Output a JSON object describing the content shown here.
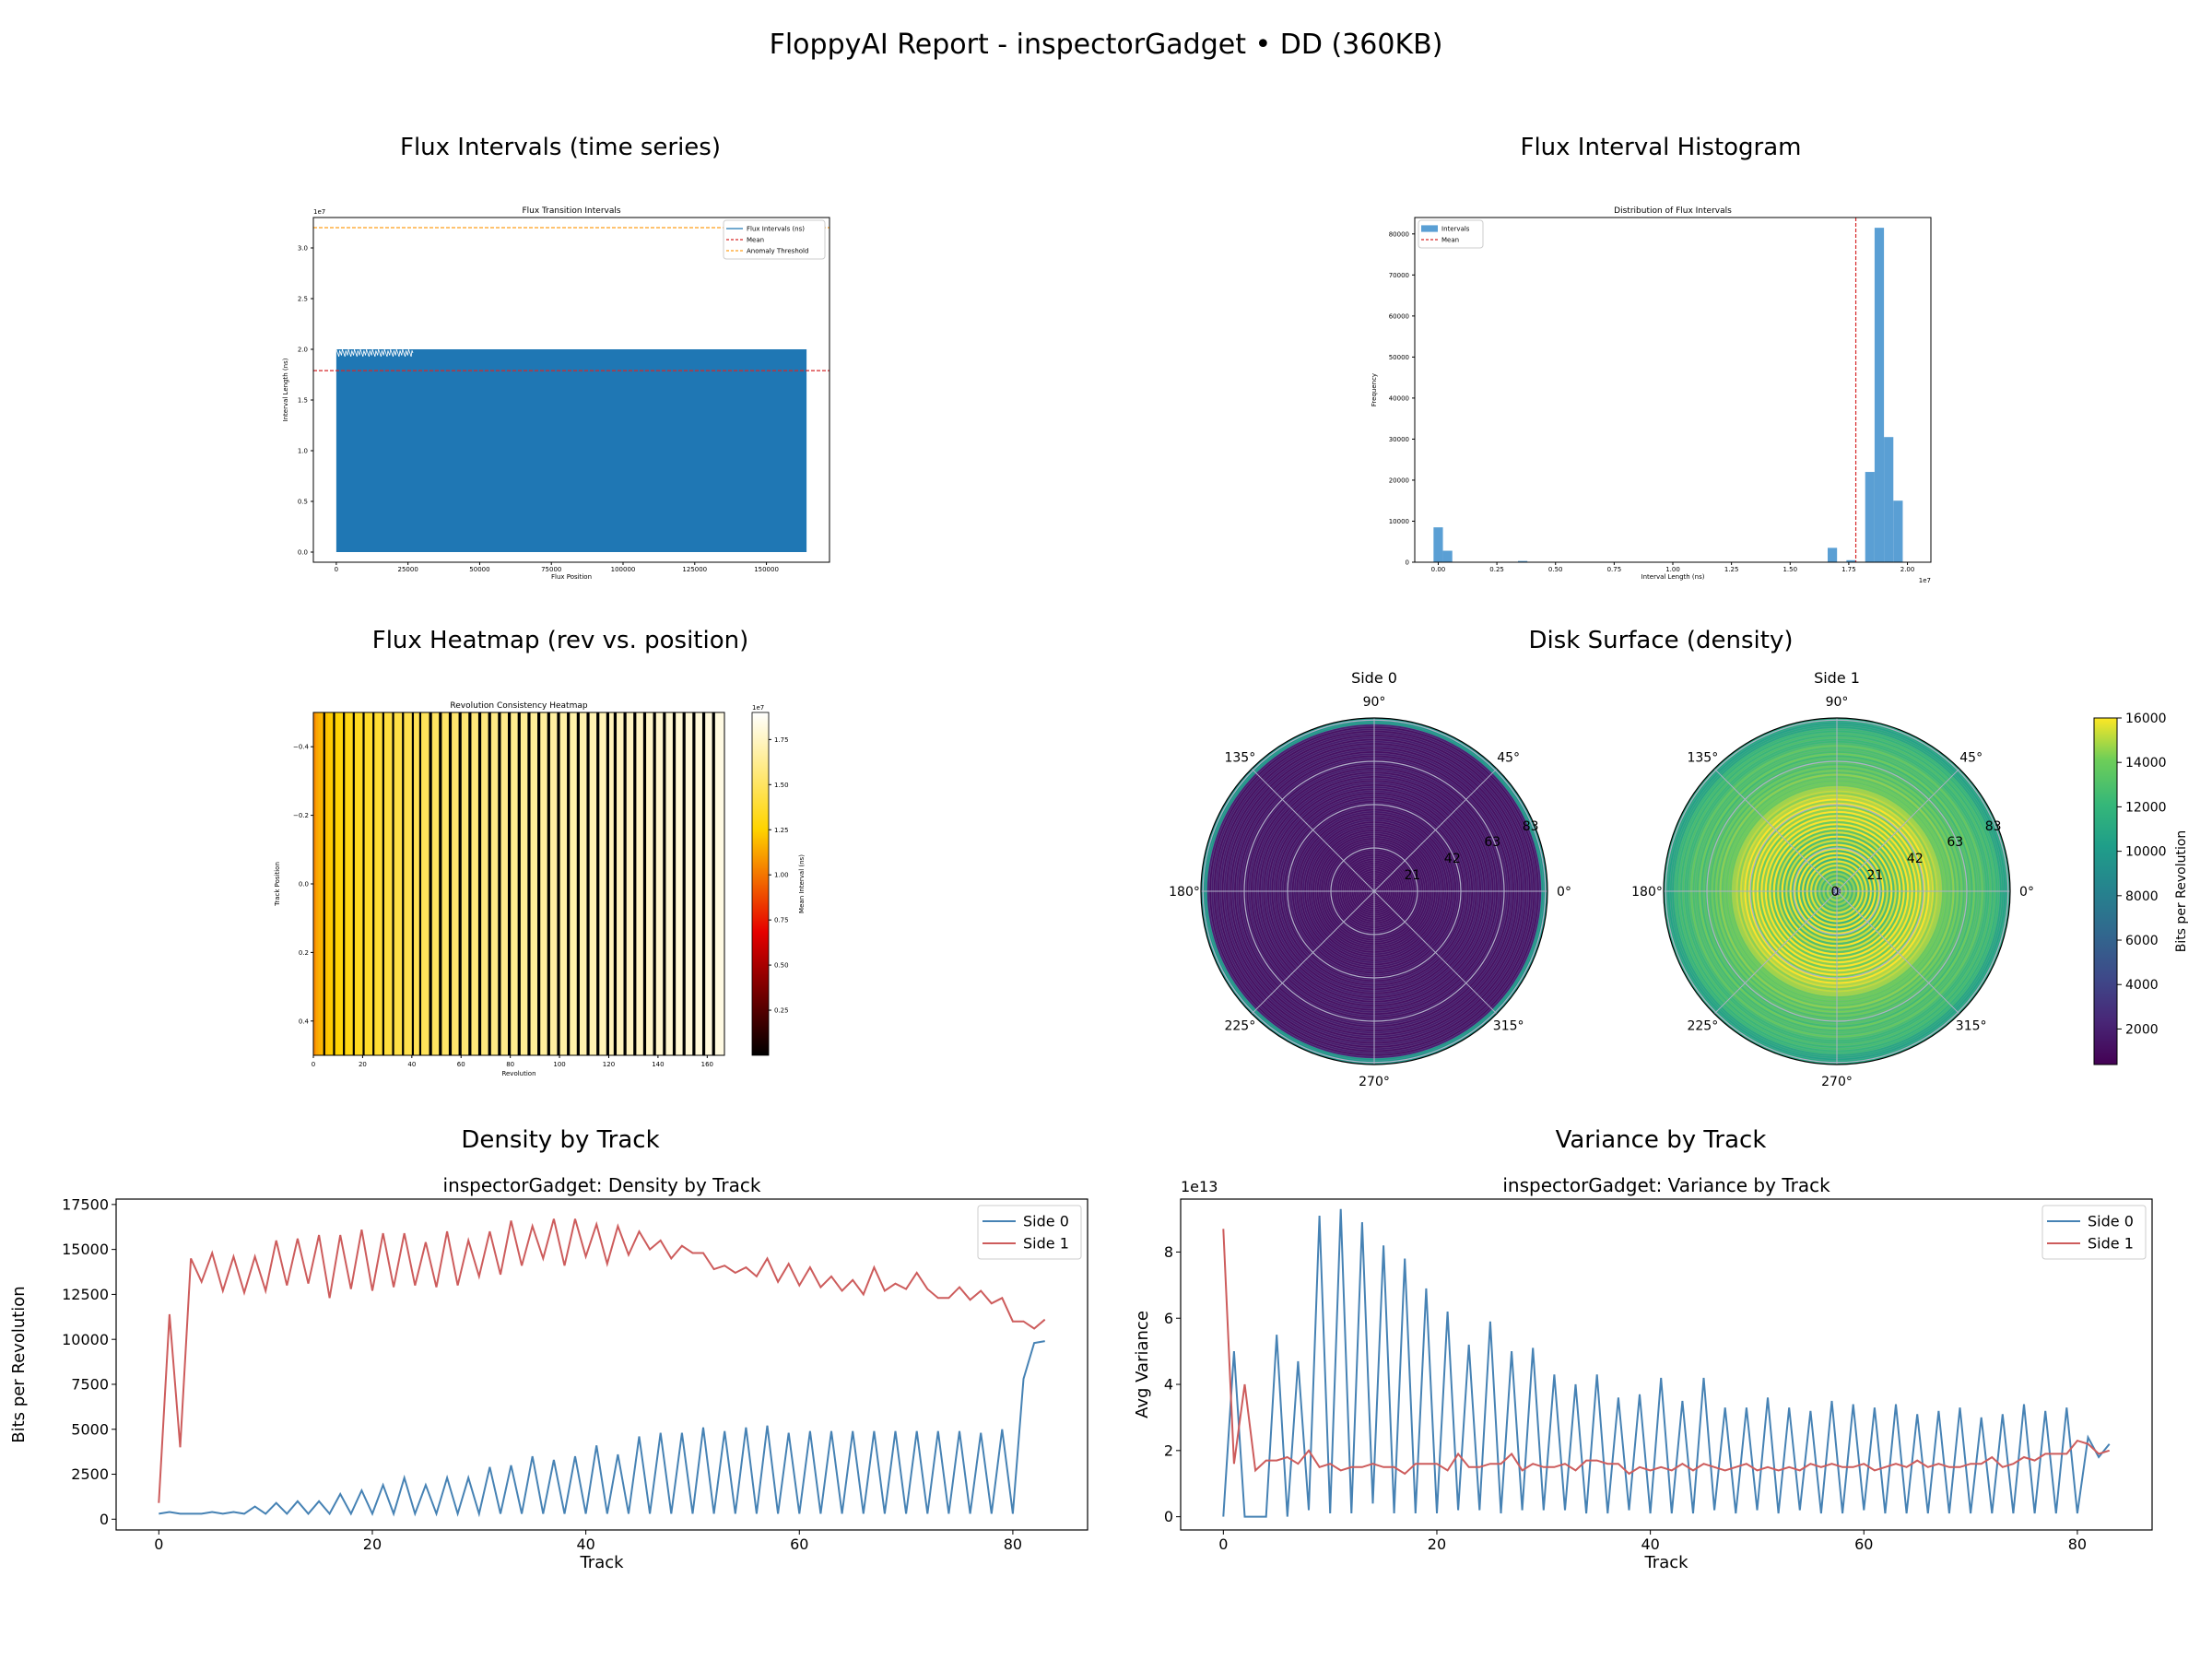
{
  "report": {
    "title": "FloppyAI Report - inspectorGadget  •  DD (360KB)"
  },
  "colors": {
    "side0": "#4682b4",
    "side1": "#cd5c5c",
    "flux_blue": "#1f77b4",
    "mean_red": "#d62728",
    "threshold_orange": "#ff9f1a",
    "hist_blue": "#5a9fd4"
  },
  "panels": {
    "flux_series": {
      "title": "Flux Intervals (time series)"
    },
    "flux_hist": {
      "title": "Flux Interval Histogram"
    },
    "heatmap": {
      "title": "Flux Heatmap (rev vs. position)"
    },
    "surface": {
      "title": "Disk Surface (density)"
    },
    "density": {
      "title": "Density by Track"
    },
    "variance": {
      "title": "Variance by Track"
    }
  },
  "chart_data": [
    {
      "id": "flux_series",
      "type": "area",
      "title": "Flux Transition Intervals",
      "xlabel": "Flux Position",
      "ylabel": "Interval Length (ns)",
      "y_offset_label": "1e7",
      "xlim": [
        -8000,
        172000
      ],
      "ylim": [
        -0.1,
        3.3
      ],
      "xticks": [
        0,
        25000,
        50000,
        75000,
        100000,
        125000,
        150000
      ],
      "xtick_labels": [
        "0",
        "25000",
        "50000",
        "75000",
        "100000",
        "125000",
        "150000"
      ],
      "yticks": [
        0.0,
        0.5,
        1.0,
        1.5,
        2.0,
        2.5,
        3.0
      ],
      "ytick_labels": [
        "0.0",
        "0.5",
        "1.0",
        "1.5",
        "2.0",
        "2.5",
        "3.0"
      ],
      "fill_x_range": [
        0,
        164000
      ],
      "fill_y_range": [
        0.0,
        2.0
      ],
      "mean": 1.79,
      "anomaly_threshold": 3.2,
      "legend": [
        "Flux Intervals (ns)",
        "Mean",
        "Anomaly Threshold"
      ],
      "legend_position": "upper right"
    },
    {
      "id": "flux_hist",
      "type": "bar",
      "title": "Distribution of Flux Intervals",
      "xlabel": "Interval Length (ns)",
      "ylabel": "Frequency",
      "x_offset_label": "1e7",
      "xlim": [
        -0.1,
        2.1
      ],
      "ylim": [
        0,
        84000
      ],
      "xticks": [
        0.0,
        0.25,
        0.5,
        0.75,
        1.0,
        1.25,
        1.5,
        1.75,
        2.0
      ],
      "xtick_labels": [
        "0.00",
        "0.25",
        "0.50",
        "0.75",
        "1.00",
        "1.25",
        "1.50",
        "1.75",
        "2.00"
      ],
      "yticks": [
        0,
        10000,
        20000,
        30000,
        40000,
        50000,
        60000,
        70000,
        80000
      ],
      "ytick_labels": [
        "0",
        "10000",
        "20000",
        "30000",
        "40000",
        "50000",
        "60000",
        "70000",
        "80000"
      ],
      "bin_width": 0.04,
      "bins": [
        {
          "x": -0.02,
          "count": 8500
        },
        {
          "x": 0.02,
          "count": 2800
        },
        {
          "x": 0.34,
          "count": 300
        },
        {
          "x": 1.66,
          "count": 3500
        },
        {
          "x": 1.74,
          "count": 500
        },
        {
          "x": 1.82,
          "count": 22000
        },
        {
          "x": 1.86,
          "count": 81500
        },
        {
          "x": 1.9,
          "count": 30500
        },
        {
          "x": 1.94,
          "count": 15000
        }
      ],
      "mean": 1.78,
      "legend": [
        "Intervals",
        "Mean"
      ],
      "legend_position": "upper left"
    },
    {
      "id": "heatmap",
      "type": "heatmap",
      "title": "Revolution Consistency Heatmap",
      "xlabel": "Revolution",
      "ylabel": "Track Position",
      "colorbar_label": "Mean Interval (ns)",
      "colorbar_offset_label": "1e7",
      "colormap": "hot",
      "xlim": [
        0,
        167
      ],
      "ylim": [
        -0.5,
        0.5
      ],
      "xticks": [
        0,
        20,
        40,
        60,
        80,
        100,
        120,
        140,
        160
      ],
      "xtick_labels": [
        "0",
        "20",
        "40",
        "60",
        "80",
        "100",
        "120",
        "140",
        "160"
      ],
      "yticks": [
        -0.4,
        -0.2,
        0.0,
        0.2,
        0.4
      ],
      "ytick_labels": [
        "−0.4",
        "−0.2",
        "0.0",
        "0.2",
        "0.4"
      ],
      "color_range": [
        0.0,
        1.9
      ],
      "colorbar_ticks": [
        0.25,
        0.5,
        0.75,
        1.0,
        1.25,
        1.5,
        1.75
      ],
      "colorbar_tick_labels": [
        "0.25",
        "0.50",
        "0.75",
        "1.00",
        "1.25",
        "1.50",
        "1.75"
      ]
    },
    {
      "id": "surface_side0",
      "type": "heatmap",
      "title": "Side 0",
      "projection": "polar",
      "angle_labels": [
        "0°",
        "45°",
        "90°",
        "135°",
        "180°",
        "225°",
        "270°",
        "315°"
      ],
      "radial_ticks": [
        21,
        42,
        63,
        83
      ],
      "radial_tick_labels": [
        "21",
        "42",
        "63",
        "83"
      ],
      "radial_max": 84,
      "colormap": "viridis",
      "color_range": [
        400,
        16000
      ],
      "outer_band_value": 9800,
      "inner_value": 1200
    },
    {
      "id": "surface_side1",
      "type": "heatmap",
      "title": "Side 1",
      "projection": "polar",
      "angle_labels": [
        "0°",
        "45°",
        "90°",
        "135°",
        "180°",
        "225°",
        "270°",
        "315°"
      ],
      "radial_ticks": [
        0,
        21,
        42,
        63,
        83
      ],
      "radial_tick_labels": [
        "0",
        "21",
        "42",
        "63",
        "83"
      ],
      "radial_max": 84,
      "colormap": "viridis",
      "color_range": [
        400,
        16000
      ],
      "colorbar_label": "Bits per Revolution",
      "colorbar_ticks": [
        2000,
        4000,
        6000,
        8000,
        10000,
        12000,
        14000,
        16000
      ],
      "colorbar_tick_labels": [
        "2000",
        "4000",
        "6000",
        "8000",
        "10000",
        "12000",
        "14000",
        "16000"
      ]
    },
    {
      "id": "density",
      "type": "line",
      "title": "inspectorGadget: Density by Track",
      "xlabel": "Track",
      "ylabel": "Bits per Revolution",
      "xlim": [
        -4,
        87
      ],
      "ylim": [
        -600,
        17800
      ],
      "xticks": [
        0,
        20,
        40,
        60,
        80
      ],
      "xtick_labels": [
        "0",
        "20",
        "40",
        "60",
        "80"
      ],
      "yticks": [
        0,
        2500,
        5000,
        7500,
        10000,
        12500,
        15000,
        17500
      ],
      "ytick_labels": [
        "0",
        "2500",
        "5000",
        "7500",
        "10000",
        "12500",
        "15000",
        "17500"
      ],
      "legend_position": "upper right",
      "series": [
        {
          "name": "Side 0",
          "color": "#4682b4",
          "x": [
            0,
            1,
            2,
            3,
            4,
            5,
            6,
            7,
            8,
            9,
            10,
            11,
            12,
            13,
            14,
            15,
            16,
            17,
            18,
            19,
            20,
            21,
            22,
            23,
            24,
            25,
            26,
            27,
            28,
            29,
            30,
            31,
            32,
            33,
            34,
            35,
            36,
            37,
            38,
            39,
            40,
            41,
            42,
            43,
            44,
            45,
            46,
            47,
            48,
            49,
            50,
            51,
            52,
            53,
            54,
            55,
            56,
            57,
            58,
            59,
            60,
            61,
            62,
            63,
            64,
            65,
            66,
            67,
            68,
            69,
            70,
            71,
            72,
            73,
            74,
            75,
            76,
            77,
            78,
            79,
            80,
            81,
            82,
            83
          ],
          "values": [
            300,
            400,
            300,
            300,
            300,
            400,
            300,
            400,
            300,
            700,
            300,
            900,
            300,
            1000,
            300,
            1000,
            300,
            1400,
            300,
            1600,
            300,
            1900,
            300,
            2300,
            300,
            1900,
            300,
            2300,
            300,
            2300,
            300,
            2900,
            300,
            3000,
            300,
            3500,
            300,
            3300,
            300,
            3500,
            300,
            4100,
            300,
            3600,
            300,
            4600,
            300,
            4800,
            300,
            4800,
            300,
            5100,
            300,
            4900,
            300,
            5100,
            300,
            5200,
            300,
            4800,
            300,
            4900,
            300,
            4900,
            300,
            4900,
            300,
            4900,
            300,
            4900,
            300,
            4900,
            300,
            4900,
            300,
            4900,
            300,
            4800,
            300,
            5000,
            300,
            7800,
            9800,
            9900
          ]
        },
        {
          "name": "Side 1",
          "color": "#cd5c5c",
          "x": [
            0,
            1,
            2,
            3,
            4,
            5,
            6,
            7,
            8,
            9,
            10,
            11,
            12,
            13,
            14,
            15,
            16,
            17,
            18,
            19,
            20,
            21,
            22,
            23,
            24,
            25,
            26,
            27,
            28,
            29,
            30,
            31,
            32,
            33,
            34,
            35,
            36,
            37,
            38,
            39,
            40,
            41,
            42,
            43,
            44,
            45,
            46,
            47,
            48,
            49,
            50,
            51,
            52,
            53,
            54,
            55,
            56,
            57,
            58,
            59,
            60,
            61,
            62,
            63,
            64,
            65,
            66,
            67,
            68,
            69,
            70,
            71,
            72,
            73,
            74,
            75,
            76,
            77,
            78,
            79,
            80,
            81,
            82,
            83
          ],
          "values": [
            900,
            11400,
            4000,
            14500,
            13200,
            14800,
            12700,
            14600,
            12600,
            14600,
            12700,
            15500,
            13000,
            15600,
            13100,
            15800,
            12300,
            15800,
            12800,
            16100,
            12700,
            15900,
            12900,
            15900,
            13000,
            15400,
            12900,
            16000,
            13000,
            15500,
            13500,
            16000,
            13600,
            16600,
            14100,
            16300,
            14500,
            16700,
            14100,
            16700,
            14600,
            16400,
            14200,
            16300,
            14700,
            16000,
            15000,
            15500,
            14500,
            15200,
            14800,
            14800,
            13900,
            14100,
            13700,
            14000,
            13500,
            14500,
            13200,
            14200,
            13000,
            14000,
            12900,
            13500,
            12700,
            13300,
            12500,
            14000,
            12700,
            13100,
            12800,
            13700,
            12800,
            12300,
            12300,
            12900,
            12200,
            12700,
            12000,
            12300,
            11000,
            11000,
            10600,
            11100
          ]
        }
      ]
    },
    {
      "id": "variance",
      "type": "line",
      "title": "inspectorGadget: Variance by Track",
      "xlabel": "Track",
      "ylabel": "Avg Variance",
      "y_offset_label": "1e13",
      "xlim": [
        -4,
        87
      ],
      "ylim": [
        -0.4,
        9.6
      ],
      "xticks": [
        0,
        20,
        40,
        60,
        80
      ],
      "xtick_labels": [
        "0",
        "20",
        "40",
        "60",
        "80"
      ],
      "yticks": [
        0,
        2,
        4,
        6,
        8
      ],
      "ytick_labels": [
        "0",
        "2",
        "4",
        "6",
        "8"
      ],
      "legend_position": "upper right",
      "series": [
        {
          "name": "Side 0",
          "color": "#4682b4",
          "x": [
            0,
            1,
            2,
            3,
            4,
            5,
            6,
            7,
            8,
            9,
            10,
            11,
            12,
            13,
            14,
            15,
            16,
            17,
            18,
            19,
            20,
            21,
            22,
            23,
            24,
            25,
            26,
            27,
            28,
            29,
            30,
            31,
            32,
            33,
            34,
            35,
            36,
            37,
            38,
            39,
            40,
            41,
            42,
            43,
            44,
            45,
            46,
            47,
            48,
            49,
            50,
            51,
            52,
            53,
            54,
            55,
            56,
            57,
            58,
            59,
            60,
            61,
            62,
            63,
            64,
            65,
            66,
            67,
            68,
            69,
            70,
            71,
            72,
            73,
            74,
            75,
            76,
            77,
            78,
            79,
            80,
            81,
            82,
            83
          ],
          "values": [
            0.0,
            5.0,
            0.0,
            0.0,
            0.0,
            5.5,
            0.0,
            4.7,
            0.2,
            9.1,
            0.1,
            9.3,
            0.1,
            8.9,
            0.4,
            8.2,
            0.1,
            7.8,
            0.1,
            6.9,
            0.1,
            6.2,
            0.2,
            5.2,
            0.2,
            5.9,
            0.1,
            5.0,
            0.2,
            5.1,
            0.2,
            4.3,
            0.2,
            4.0,
            0.1,
            4.3,
            0.1,
            3.6,
            0.2,
            3.7,
            0.1,
            4.2,
            0.1,
            3.5,
            0.1,
            4.2,
            0.2,
            3.3,
            0.1,
            3.3,
            0.2,
            3.6,
            0.1,
            3.3,
            0.2,
            3.2,
            0.1,
            3.5,
            0.1,
            3.4,
            0.2,
            3.3,
            0.1,
            3.4,
            0.1,
            3.1,
            0.1,
            3.2,
            0.1,
            3.3,
            0.1,
            3.0,
            0.1,
            3.1,
            0.1,
            3.4,
            0.1,
            3.2,
            0.1,
            3.3,
            0.1,
            2.4,
            1.8,
            2.2
          ]
        },
        {
          "name": "Side 1",
          "color": "#cd5c5c",
          "x": [
            0,
            1,
            2,
            3,
            4,
            5,
            6,
            7,
            8,
            9,
            10,
            11,
            12,
            13,
            14,
            15,
            16,
            17,
            18,
            19,
            20,
            21,
            22,
            23,
            24,
            25,
            26,
            27,
            28,
            29,
            30,
            31,
            32,
            33,
            34,
            35,
            36,
            37,
            38,
            39,
            40,
            41,
            42,
            43,
            44,
            45,
            46,
            47,
            48,
            49,
            50,
            51,
            52,
            53,
            54,
            55,
            56,
            57,
            58,
            59,
            60,
            61,
            62,
            63,
            64,
            65,
            66,
            67,
            68,
            69,
            70,
            71,
            72,
            73,
            74,
            75,
            76,
            77,
            78,
            79,
            80,
            81,
            82,
            83
          ],
          "values": [
            8.7,
            1.6,
            4.0,
            1.4,
            1.7,
            1.7,
            1.8,
            1.6,
            2.0,
            1.5,
            1.6,
            1.4,
            1.5,
            1.5,
            1.6,
            1.5,
            1.5,
            1.3,
            1.6,
            1.6,
            1.6,
            1.4,
            1.9,
            1.5,
            1.5,
            1.6,
            1.6,
            1.9,
            1.4,
            1.6,
            1.5,
            1.5,
            1.6,
            1.4,
            1.7,
            1.7,
            1.6,
            1.6,
            1.3,
            1.5,
            1.4,
            1.5,
            1.4,
            1.6,
            1.4,
            1.6,
            1.5,
            1.4,
            1.5,
            1.6,
            1.4,
            1.5,
            1.4,
            1.5,
            1.4,
            1.6,
            1.5,
            1.6,
            1.5,
            1.5,
            1.6,
            1.4,
            1.5,
            1.6,
            1.5,
            1.7,
            1.5,
            1.6,
            1.5,
            1.5,
            1.6,
            1.6,
            1.8,
            1.5,
            1.6,
            1.8,
            1.7,
            1.9,
            1.9,
            1.9,
            2.3,
            2.2,
            1.9,
            2.0
          ]
        }
      ]
    }
  ]
}
